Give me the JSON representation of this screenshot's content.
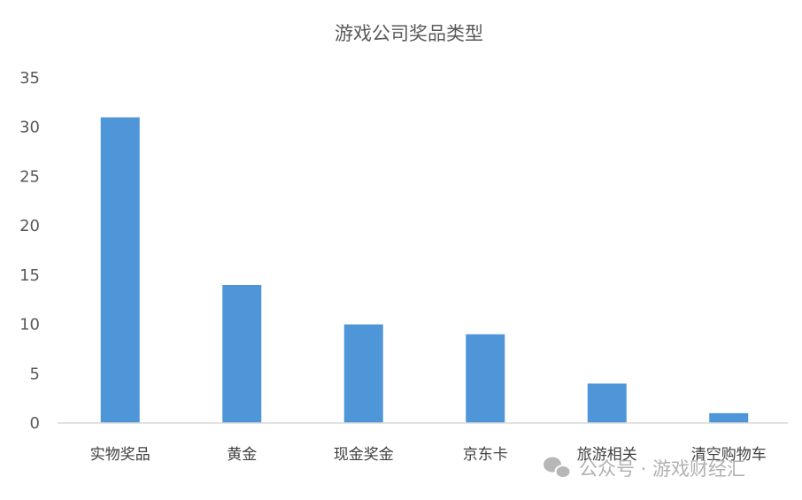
{
  "chart_data": {
    "type": "bar",
    "title": "游戏公司奖品类型",
    "categories": [
      "实物奖品",
      "黄金",
      "现金奖金",
      "京东卡",
      "旅游相关",
      "清空购物车"
    ],
    "values": [
      31,
      14,
      10,
      9,
      4,
      1
    ],
    "xlabel": "",
    "ylabel": "",
    "ylim": [
      0,
      35
    ],
    "yticks": [
      0,
      5,
      10,
      15,
      20,
      25,
      30,
      35
    ],
    "grid": false,
    "bar_color": "#4f96d9",
    "axis_color": "#d9d9d9"
  },
  "watermark": {
    "text": "公众号 · 游戏财经汇",
    "icon": "wechat-icon"
  }
}
